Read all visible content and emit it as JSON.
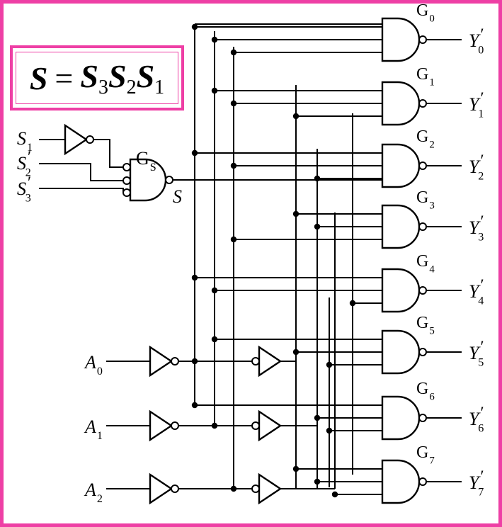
{
  "formula": {
    "lhs": "S",
    "eq": "=",
    "terms": [
      {
        "base": "S",
        "sub": "3"
      },
      {
        "base": "S",
        "sub": "2"
      },
      {
        "base": "S",
        "sub": "1"
      }
    ]
  },
  "enable_inputs": [
    {
      "base": "S",
      "sub": "1",
      "prime": ""
    },
    {
      "base": "S",
      "sub": "2",
      "prime": "′"
    },
    {
      "base": "S",
      "sub": "3",
      "prime": "′"
    }
  ],
  "enable_gate": {
    "name": "G",
    "sub": "S",
    "output": "S"
  },
  "address_inputs": [
    {
      "base": "A",
      "sub": "0"
    },
    {
      "base": "A",
      "sub": "1"
    },
    {
      "base": "A",
      "sub": "2"
    }
  ],
  "gates": [
    {
      "name": "G",
      "sub": "0"
    },
    {
      "name": "G",
      "sub": "1"
    },
    {
      "name": "G",
      "sub": "2"
    },
    {
      "name": "G",
      "sub": "3"
    },
    {
      "name": "G",
      "sub": "4"
    },
    {
      "name": "G",
      "sub": "5"
    },
    {
      "name": "G",
      "sub": "6"
    },
    {
      "name": "G",
      "sub": "7"
    }
  ],
  "outputs": [
    {
      "base": "Y",
      "sub": "0",
      "prime": "′"
    },
    {
      "base": "Y",
      "sub": "1",
      "prime": "′"
    },
    {
      "base": "Y",
      "sub": "2",
      "prime": "′"
    },
    {
      "base": "Y",
      "sub": "3",
      "prime": "′"
    },
    {
      "base": "Y",
      "sub": "4",
      "prime": "′"
    },
    {
      "base": "Y",
      "sub": "5",
      "prime": "′"
    },
    {
      "base": "Y",
      "sub": "6",
      "prime": "′"
    },
    {
      "base": "Y",
      "sub": "7",
      "prime": "′"
    }
  ],
  "colors": {
    "frame": "#ee3fa5",
    "wire": "#000000",
    "background": "#ffffff"
  }
}
